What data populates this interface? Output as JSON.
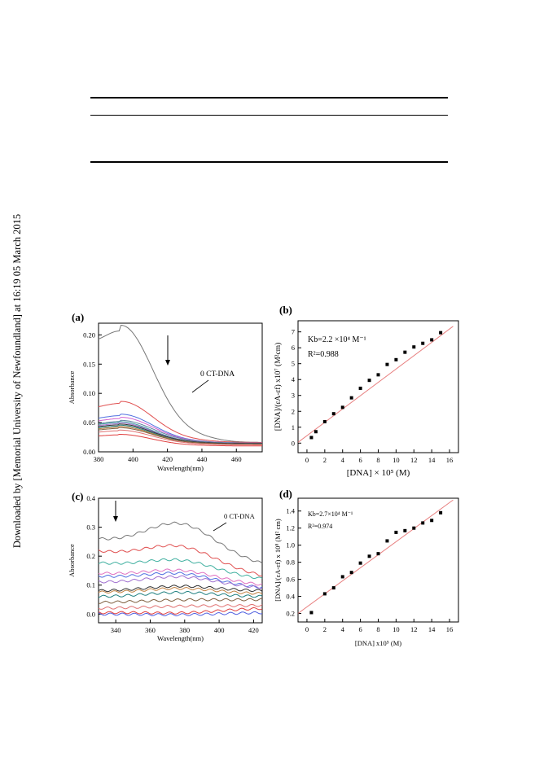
{
  "sidenote": "Downloaded by [Memorial University of Newfoundland] at 16:19 05 March 2015",
  "chart_data": [
    {
      "panel": "(a)",
      "type": "line",
      "xlabel": "Wavelength(nm)",
      "ylabel": "Absorbance",
      "xlim": [
        380,
        475
      ],
      "ylim": [
        0,
        0.22
      ],
      "xticks": [
        "380",
        "400",
        "420",
        "440",
        "460"
      ],
      "yticks": [
        "0.00",
        "0.05",
        "0.10",
        "0.15",
        "0.20"
      ],
      "annotation": "0 CT-DNA",
      "series": [
        {
          "color": "#777777",
          "peak": 0.207,
          "peak_x": 393,
          "end": 0.016
        },
        {
          "color": "#e05050",
          "peak": 0.083,
          "peak_x": 393,
          "end": 0.016
        },
        {
          "color": "#5070e0",
          "peak": 0.062,
          "peak_x": 393,
          "end": 0.015
        },
        {
          "color": "#d060d0",
          "peak": 0.057,
          "peak_x": 393,
          "end": 0.015
        },
        {
          "color": "#6080a0",
          "peak": 0.052,
          "peak_x": 393,
          "end": 0.015
        },
        {
          "color": "#40a0a0",
          "peak": 0.05,
          "peak_x": 392,
          "end": 0.014
        },
        {
          "color": "#a070d0",
          "peak": 0.048,
          "peak_x": 392,
          "end": 0.014
        },
        {
          "color": "#303030",
          "peak": 0.046,
          "peak_x": 392,
          "end": 0.014
        },
        {
          "color": "#208080",
          "peak": 0.044,
          "peak_x": 392,
          "end": 0.013
        },
        {
          "color": "#c08040",
          "peak": 0.042,
          "peak_x": 392,
          "end": 0.013
        },
        {
          "color": "#806040",
          "peak": 0.04,
          "peak_x": 392,
          "end": 0.013
        },
        {
          "color": "#e07070",
          "peak": 0.036,
          "peak_x": 392,
          "end": 0.012
        },
        {
          "color": "#e04040",
          "peak": 0.029,
          "peak_x": 392,
          "end": 0.01
        }
      ]
    },
    {
      "panel": "(b)",
      "type": "scatter",
      "xlabel": "[DNA] × 10⁵ (M)",
      "ylabel": "[DNA]/(εA-εf) x10⁷ (M²cm)",
      "xlim": [
        -1,
        17
      ],
      "ylim": [
        -0.6,
        7.7
      ],
      "xticks": [
        "0",
        "2",
        "4",
        "6",
        "8",
        "10",
        "12",
        "14",
        "16"
      ],
      "yticks": [
        "0",
        "1",
        "2",
        "3",
        "4",
        "5",
        "6",
        "7"
      ],
      "annotations": [
        "Kb=2.2 ×10⁴ M⁻¹",
        "R²=0.988"
      ],
      "fit": {
        "x": [
          -1,
          16.4
        ],
        "y": [
          0.05,
          7.35
        ],
        "color": "#e88080"
      },
      "x": [
        0.5,
        1,
        2,
        3,
        4,
        5,
        6,
        7,
        8,
        9,
        10,
        11,
        12,
        13,
        14,
        15
      ],
      "y": [
        0.35,
        0.72,
        1.35,
        1.85,
        2.25,
        2.85,
        3.45,
        3.95,
        4.3,
        4.95,
        5.25,
        5.72,
        6.05,
        6.28,
        6.5,
        6.95
      ]
    },
    {
      "panel": "(c)",
      "type": "line",
      "xlabel": "Wavelength(nm)",
      "ylabel": "Absorbance",
      "xlim": [
        330,
        425
      ],
      "ylim": [
        -0.03,
        0.4
      ],
      "xticks": [
        "340",
        "360",
        "380",
        "400",
        "420"
      ],
      "yticks": [
        "0.0",
        "0.1",
        "0.2",
        "0.3",
        "0.4"
      ],
      "annotation": "0 CT-DNA",
      "series": [
        {
          "color": "#777777",
          "start": 0.255,
          "peak": 0.335,
          "end": 0.17
        },
        {
          "color": "#e05050",
          "start": 0.215,
          "peak": 0.26,
          "end": 0.13
        },
        {
          "color": "#40b0a0",
          "start": 0.175,
          "peak": 0.2,
          "end": 0.12
        },
        {
          "color": "#e070c0",
          "start": 0.14,
          "peak": 0.16,
          "end": 0.1
        },
        {
          "color": "#5070e0",
          "start": 0.13,
          "peak": 0.15,
          "end": 0.09
        },
        {
          "color": "#a070d0",
          "start": 0.11,
          "peak": 0.13,
          "end": 0.09
        },
        {
          "color": "#303030",
          "start": 0.08,
          "peak": 0.09,
          "end": 0.08
        },
        {
          "color": "#c08040",
          "start": 0.075,
          "peak": 0.085,
          "end": 0.07
        },
        {
          "color": "#208080",
          "start": 0.06,
          "peak": 0.07,
          "end": 0.06
        },
        {
          "color": "#806040",
          "start": 0.04,
          "peak": 0.05,
          "end": 0.05
        },
        {
          "color": "#e07070",
          "start": 0.02,
          "peak": 0.03,
          "end": 0.03
        },
        {
          "color": "#e04040",
          "start": 0.005,
          "peak": 0.01,
          "end": 0.02
        },
        {
          "color": "#5060e0",
          "start": 0.0,
          "peak": 0.0,
          "end": 0.005
        }
      ]
    },
    {
      "panel": "(d)",
      "type": "scatter",
      "xlabel": "[DNA] x10⁵ (M)",
      "ylabel": "[DNA]/(εA-εf) x 10⁸ (M² cm)",
      "xlim": [
        -1,
        17
      ],
      "ylim": [
        0.1,
        1.55
      ],
      "xticks": [
        "0",
        "2",
        "4",
        "6",
        "8",
        "10",
        "12",
        "14",
        "16"
      ],
      "yticks": [
        "0.2",
        "0.4",
        "0.6",
        "0.8",
        "1.0",
        "1.2",
        "1.4"
      ],
      "annotations": [
        "Kb=2.7×10⁴ M⁻¹",
        "R²=0.974"
      ],
      "fit": {
        "x": [
          -1,
          16.4
        ],
        "y": [
          0.2,
          1.53
        ],
        "color": "#e88080"
      },
      "x": [
        0.5,
        2,
        3,
        4,
        5,
        6,
        7,
        8,
        9,
        10,
        11,
        12,
        13,
        14,
        15
      ],
      "y": [
        0.21,
        0.43,
        0.5,
        0.63,
        0.68,
        0.79,
        0.87,
        0.9,
        1.05,
        1.15,
        1.17,
        1.2,
        1.26,
        1.29,
        1.38
      ]
    }
  ]
}
